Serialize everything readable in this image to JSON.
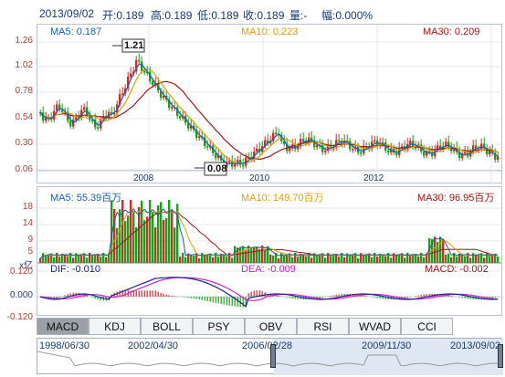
{
  "header": {
    "date": "2013/09/02",
    "open": "开:0.189",
    "high": "高:0.189",
    "low": "低:0.189",
    "close": "收:0.189",
    "volume": "量:-",
    "change": "幅:0.000%"
  },
  "price_panel": {
    "ma5": "MA5: 0.187",
    "ma10": "MA10: 0.223",
    "ma30": "MA30: 0.209",
    "y_ticks": [
      "1.26",
      "1.02",
      "0.78",
      "0.54",
      "0.30",
      "0.06"
    ],
    "x_ticks": [
      "2008",
      "2010",
      "2012"
    ],
    "high_marker": "1.21",
    "low_marker": "0.08"
  },
  "volume_panel": {
    "ma5": "MA5: 55.39百万",
    "ma10": "MA10: 149.70百万",
    "ma30": "MA30: 96.95百万",
    "y_ticks": [
      "18",
      "14",
      "9",
      "5"
    ],
    "unit": "x亿"
  },
  "macd_panel": {
    "dif": "DIF: -0.010",
    "dea": "DEA: -0.009",
    "macd": "MACD: -0.002",
    "y_ticks": [
      "0.120",
      "0.000",
      "-0.120"
    ]
  },
  "tabs": [
    "MACD",
    "KDJ",
    "BOLL",
    "PSY",
    "OBV",
    "RSI",
    "WVAD",
    "CCI"
  ],
  "active_tab": "MACD",
  "navigator": {
    "dates": [
      "1998/06/30",
      "2002/04/30",
      "2006/02/28",
      "2009/11/30",
      "2013/09/02"
    ]
  },
  "colors": {
    "up": "#d42a2a",
    "down": "#1aa01a",
    "ma5": "#1a5fa8",
    "ma10": "#e0a000",
    "ma30": "#a01818",
    "dif": "#20208a",
    "dea": "#d020d0"
  }
}
